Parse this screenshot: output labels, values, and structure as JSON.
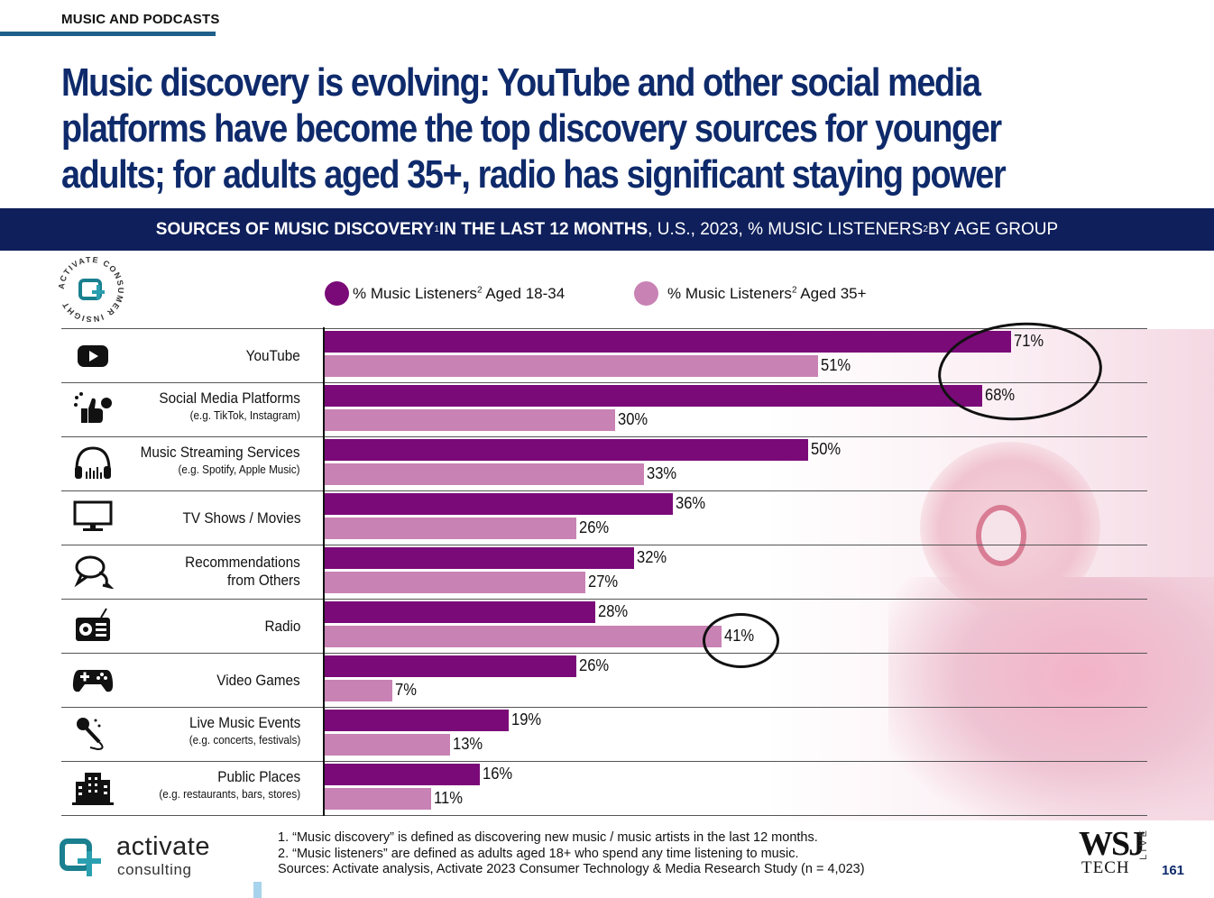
{
  "section_label": "MUSIC AND PODCASTS",
  "headline": "Music discovery is evolving: YouTube and other social media platforms have become the top discovery sources for younger adults; for adults aged 35+, radio has significant staying power",
  "banner": {
    "bold": "SOURCES OF MUSIC DISCOVERY",
    "sup1": "1",
    "bold2": " IN THE LAST 12 MONTHS",
    "rest": ", U.S., 2023, % MUSIC LISTENERS",
    "sup2": "2",
    "rest2": " BY AGE GROUP"
  },
  "badge_text": "ACTIVATE CONSUMER INSIGHT",
  "colors": {
    "dark": "#7a0a78",
    "light": "#c882b4",
    "navy": "#0e1f5b",
    "headline": "#0e2a6b"
  },
  "legend": {
    "a_prefix": "% Music Listeners",
    "a_sup": "2",
    "a_suffix": " Aged 18-34",
    "b_prefix": "% Music Listeners",
    "b_sup": "2",
    "b_suffix": " Aged 35+"
  },
  "chart_data": {
    "type": "bar",
    "orientation": "horizontal",
    "categories": [
      "YouTube",
      "Social Media Platforms",
      "Music Streaming Services",
      "TV Shows / Movies",
      "Recommendations from Others",
      "Radio",
      "Video Games",
      "Live Music Events",
      "Public Places"
    ],
    "sublabels": [
      "",
      "(e.g. TikTok, Instagram)",
      "(e.g. Spotify, Apple Music)",
      "",
      "",
      "",
      "",
      "(e.g. concerts, festivals)",
      "(e.g. restaurants, bars, stores)"
    ],
    "icons": [
      "youtube-icon",
      "social-media-icon",
      "headphones-icon",
      "tv-icon",
      "chat-bubbles-icon",
      "radio-icon",
      "gamepad-icon",
      "microphone-icon",
      "building-icon"
    ],
    "series": [
      {
        "name": "% Music Listeners2 Aged 18-34",
        "values": [
          71,
          68,
          50,
          36,
          32,
          28,
          26,
          19,
          16
        ]
      },
      {
        "name": "% Music Listeners2 Aged 35+",
        "values": [
          51,
          30,
          33,
          26,
          27,
          41,
          7,
          13,
          11
        ]
      }
    ],
    "value_suffix": "%",
    "xlim": [
      0,
      100
    ],
    "legend_position": "top"
  },
  "label_lines": {
    "recommendations": [
      "Recommendations",
      "from Others"
    ]
  },
  "footnotes": [
    "1. “Music discovery” is defined as discovering new music / music artists in the last 12 months.",
    "2. “Music listeners” are defined as adults aged 18+ who spend any time listening to music.",
    "Sources: Activate analysis, Activate 2023 Consumer Technology & Media Research Study (n = 4,023)"
  ],
  "brand": {
    "name": "activate",
    "sub": "consulting"
  },
  "wsj": {
    "top": "WSJ",
    "bottom": "TECH",
    "side": "LIVE"
  },
  "page_number": "161"
}
